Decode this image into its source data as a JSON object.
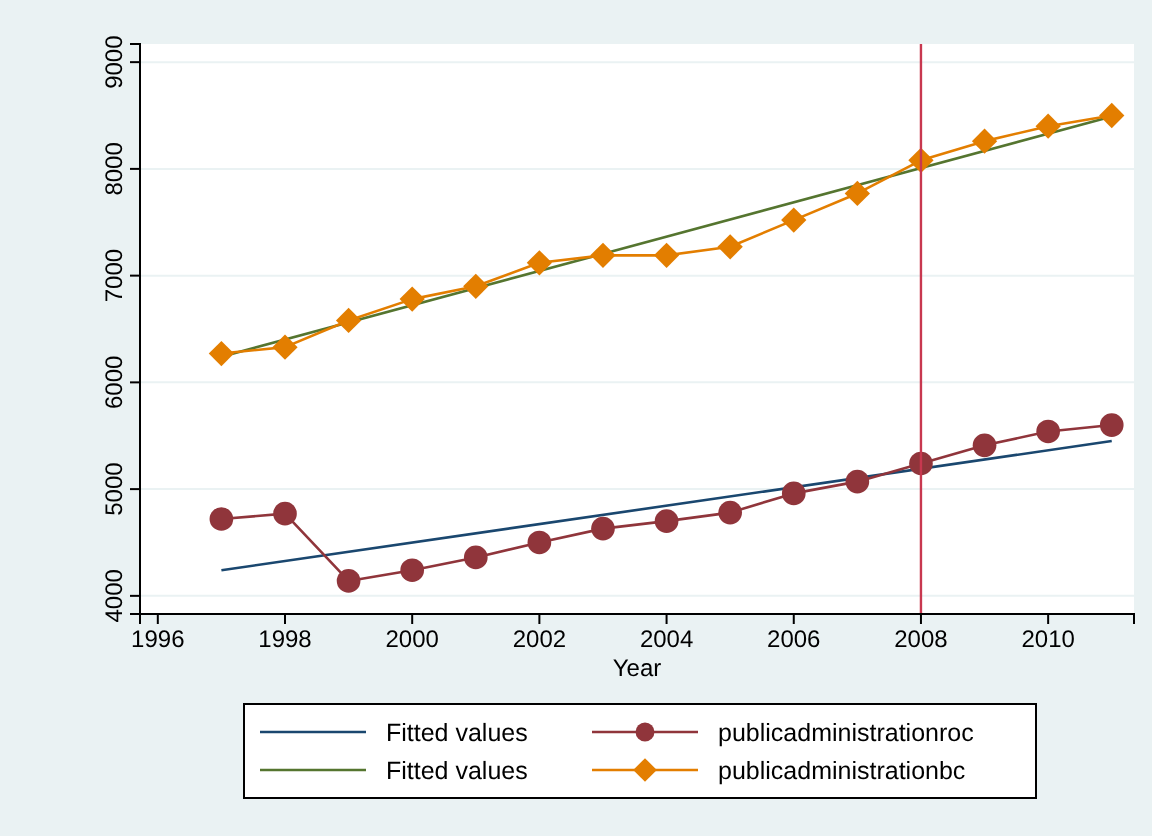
{
  "chart_data": {
    "type": "line",
    "xlabel": "Year",
    "xlim": [
      1995.72,
      2011.35
    ],
    "xticks": [
      1996,
      1998,
      2000,
      2002,
      2004,
      2006,
      2008,
      2010
    ],
    "ylim": [
      3830,
      9170
    ],
    "yticks": [
      4000,
      5000,
      6000,
      7000,
      8000,
      9000
    ],
    "grid": "y",
    "legend": "bottom",
    "line_style": "solid",
    "ref_lines": [
      {
        "axis": "x",
        "value": 2008,
        "color": "#c8384f"
      }
    ],
    "series": [
      {
        "name": "Fitted values",
        "color": "#1a476f",
        "marker": "none",
        "x": [
          1997,
          2011
        ],
        "values": [
          4240,
          5450
        ]
      },
      {
        "name": "publicadministrationroc",
        "color": "#90353b",
        "marker": "circle",
        "x": [
          1997,
          1998,
          1999,
          2000,
          2001,
          2002,
          2003,
          2004,
          2005,
          2006,
          2007,
          2008,
          2009,
          2010,
          2011
        ],
        "values": [
          4720,
          4770,
          4140,
          4240,
          4360,
          4500,
          4630,
          4700,
          4780,
          4960,
          5070,
          5240,
          5410,
          5540,
          5600
        ]
      },
      {
        "name": "Fitted values",
        "color": "#55752f",
        "marker": "none",
        "x": [
          1997,
          2011
        ],
        "values": [
          6240,
          8490
        ]
      },
      {
        "name": "publicadministrationbc",
        "color": "#e37e00",
        "marker": "diamond",
        "x": [
          1997,
          1998,
          1999,
          2000,
          2001,
          2002,
          2003,
          2004,
          2005,
          2006,
          2007,
          2008,
          2009,
          2010,
          2011
        ],
        "values": [
          6270,
          6330,
          6580,
          6780,
          6900,
          7120,
          7190,
          7190,
          7270,
          7520,
          7770,
          8080,
          8260,
          8400,
          8500
        ]
      }
    ]
  }
}
